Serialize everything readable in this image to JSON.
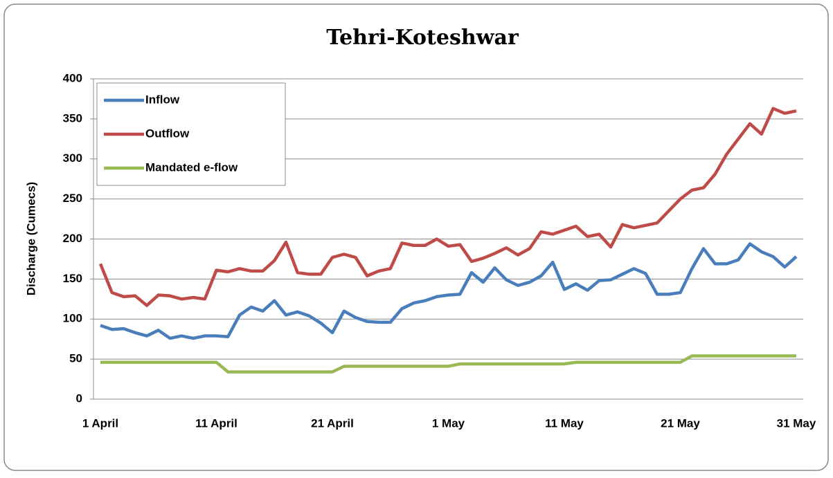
{
  "chart_data": {
    "type": "line",
    "title": "Tehri-Koteshwar",
    "y_label": "Discharge (Cumecs)",
    "categories": [
      "1 April",
      null,
      null,
      null,
      null,
      null,
      null,
      null,
      null,
      null,
      "11 April",
      null,
      null,
      null,
      null,
      null,
      null,
      null,
      null,
      null,
      "21 April",
      null,
      null,
      null,
      null,
      null,
      null,
      null,
      null,
      null,
      "1 May",
      null,
      null,
      null,
      null,
      null,
      null,
      null,
      null,
      null,
      "11 May",
      null,
      null,
      null,
      null,
      null,
      null,
      null,
      null,
      null,
      "21 May",
      null,
      null,
      null,
      null,
      null,
      null,
      null,
      null,
      null,
      "31 May"
    ],
    "series": [
      {
        "name": "Inflow",
        "color": "#4a7ebb",
        "values": [
          92,
          87,
          88,
          83,
          79,
          86,
          76,
          79,
          76,
          79,
          79,
          78,
          105,
          115,
          110,
          123,
          105,
          109,
          104,
          95,
          83,
          110,
          102,
          97,
          96,
          96,
          113,
          120,
          123,
          128,
          130,
          131,
          158,
          146,
          164,
          149,
          142,
          146,
          154,
          171,
          137,
          144,
          136,
          148,
          149,
          156,
          163,
          157,
          131,
          131,
          133,
          163,
          188,
          169,
          169,
          174,
          194,
          184,
          178,
          165,
          178
        ]
      },
      {
        "name": "Outflow",
        "color": "#be4b48",
        "values": [
          169,
          133,
          128,
          129,
          117,
          130,
          129,
          125,
          127,
          125,
          161,
          159,
          163,
          160,
          160,
          173,
          196,
          158,
          156,
          156,
          177,
          181,
          177,
          154,
          160,
          163,
          195,
          192,
          192,
          200,
          191,
          193,
          172,
          176,
          182,
          189,
          180,
          188,
          209,
          206,
          211,
          216,
          203,
          206,
          190,
          218,
          214,
          217,
          220,
          235,
          250,
          261,
          264,
          281,
          306,
          325,
          344,
          331,
          363,
          357,
          360
        ]
      },
      {
        "name": "Mandated e-flow",
        "color": "#98b954",
        "values": [
          46,
          46,
          46,
          46,
          46,
          46,
          46,
          46,
          46,
          46,
          46,
          34,
          34,
          34,
          34,
          34,
          34,
          34,
          34,
          34,
          34,
          41,
          41,
          41,
          41,
          41,
          41,
          41,
          41,
          41,
          41,
          44,
          44,
          44,
          44,
          44,
          44,
          44,
          44,
          44,
          44,
          46,
          46,
          46,
          46,
          46,
          46,
          46,
          46,
          46,
          46,
          54,
          54,
          54,
          54,
          54,
          54,
          54,
          54,
          54,
          54
        ]
      }
    ],
    "ylim": [
      0,
      400
    ],
    "yticks": [
      0,
      50,
      100,
      150,
      200,
      250,
      300,
      350,
      400
    ],
    "grid": true,
    "legend": "top-left"
  }
}
